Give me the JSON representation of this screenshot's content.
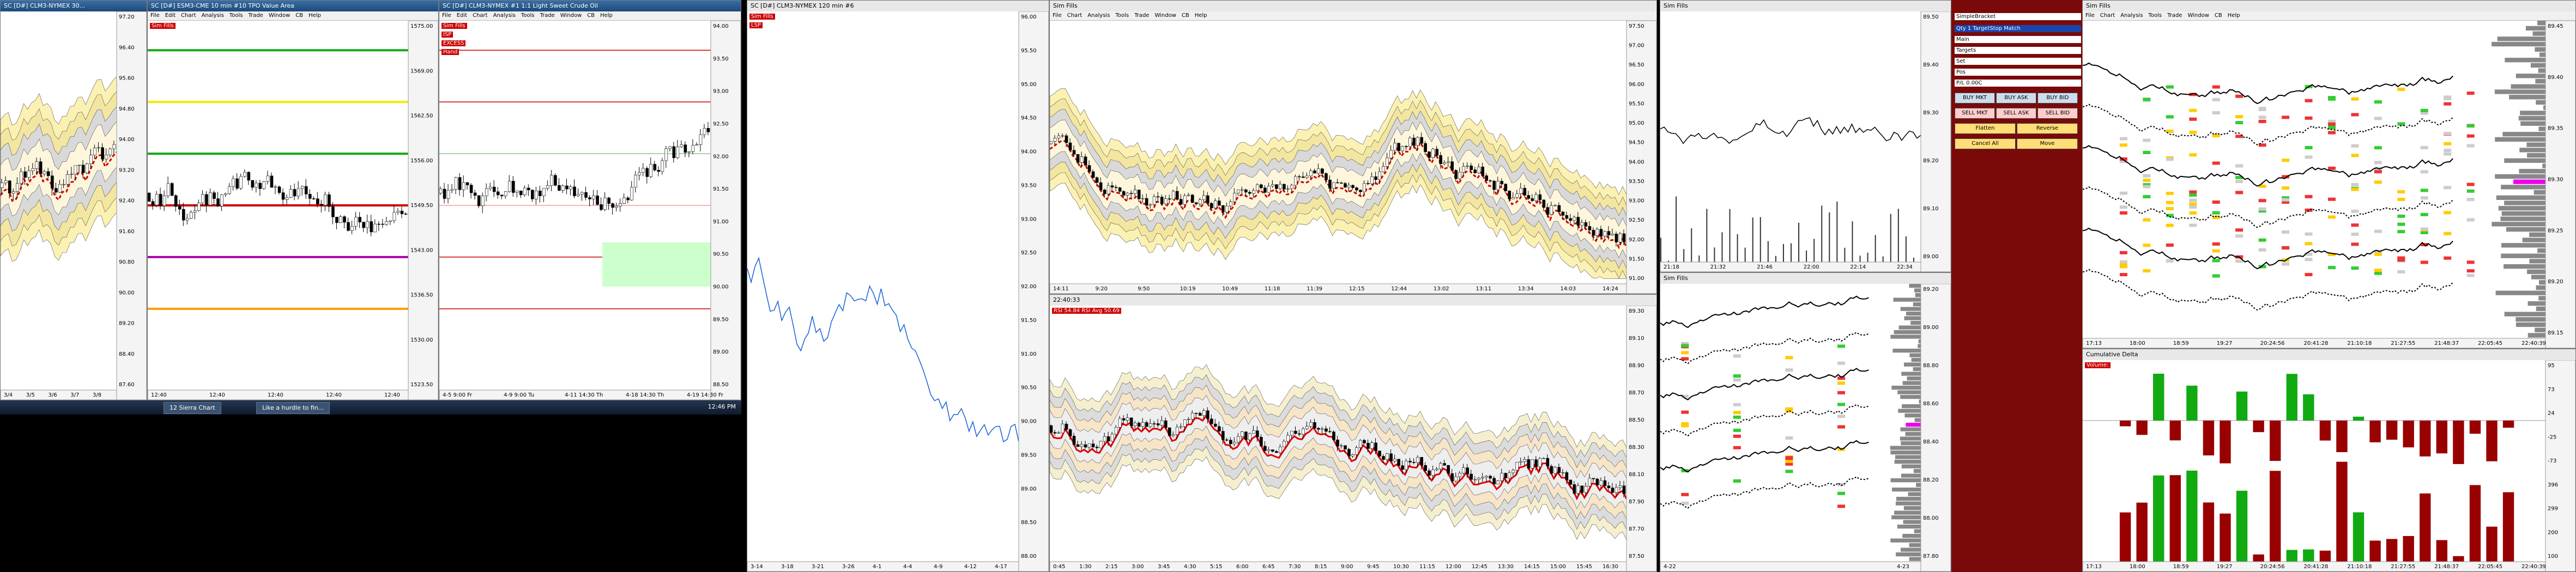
{
  "taskbar": {
    "items": [
      "12 Sierra Chart",
      "Like a hurdle to fin..."
    ],
    "clock": "12:46 PM"
  },
  "windows": [
    {
      "title": "SC [D#] CLM3-NYMEX 30...",
      "price_axis": [
        "97.20",
        "96.40",
        "95.60",
        "94.80",
        "94.00",
        "93.20",
        "92.40",
        "91.60",
        "90.80",
        "90.00",
        "89.20",
        "88.40",
        "87.60"
      ],
      "time_axis": [
        "3/4",
        "3/5",
        "3/6",
        "3/7",
        "3/8"
      ]
    },
    {
      "title": "SC [D#] ESM3-CME 10 min #10 TPO Value Area",
      "menu": [
        "File",
        "Edit",
        "Chart",
        "Analysis",
        "Tools",
        "Trade",
        "Window",
        "CB",
        "Help"
      ],
      "labels": [
        "Sim Fills"
      ],
      "price_axis": [
        "1575.00",
        "1569.00",
        "1562.50",
        "1556.00",
        "1549.50",
        "1543.00",
        "1536.50",
        "1530.00",
        "1523.50"
      ],
      "time_axis": [
        "12:40",
        "12:40",
        "12:40",
        "12:40",
        "12:40"
      ]
    },
    {
      "title": "SC [D#] CLM3-NYMEX #1 1:1 Light Sweet Crude Oil",
      "menu": [
        "File",
        "Edit",
        "Chart",
        "Analysis",
        "Tools",
        "Trade",
        "Window",
        "CB",
        "Help"
      ],
      "labels": [
        "Sim Fills",
        "ISP",
        "EXCESS",
        "Hand"
      ],
      "price_axis": [
        "94.00",
        "93.50",
        "93.00",
        "92.50",
        "92.00",
        "91.50",
        "91.00",
        "90.50",
        "90.00",
        "89.50",
        "89.00",
        "88.50"
      ],
      "time_axis": [
        "4-5 9:00 Fr",
        "4-9 9:00 Tu",
        "4-11 14:30 Th",
        "4-18 14:30 Th",
        "4-19 14:30 Fr"
      ]
    },
    {
      "title": "SC [D#] CLM3-NYMEX 120 min #6",
      "labels": [
        "Sim Fills",
        "LSP"
      ],
      "price_axis": [
        "96.00",
        "95.50",
        "95.00",
        "94.50",
        "94.00",
        "93.50",
        "93.00",
        "92.50",
        "92.00",
        "91.50",
        "91.00",
        "90.50",
        "90.00",
        "89.50",
        "89.00",
        "88.50",
        "88.00"
      ],
      "time_axis": [
        "3-14",
        "3-18",
        "3-21",
        "3-26",
        "4-1",
        "4-4",
        "4-9",
        "4-12",
        "4-17"
      ]
    },
    {
      "title": "Sim Fills",
      "menu": [
        "File",
        "Chart",
        "Analysis",
        "Tools",
        "Trade",
        "Window",
        "CB",
        "Help"
      ],
      "price_axis": [
        "97.50",
        "97.00",
        "96.50",
        "96.00",
        "95.50",
        "95.00",
        "94.50",
        "94.00",
        "93.50",
        "93.00",
        "92.50",
        "92.00",
        "91.50",
        "91.00"
      ],
      "time_axis": [
        "14:11",
        "9:20",
        "9:50",
        "10:19",
        "10:49",
        "11:18",
        "11:39",
        "12:15",
        "12:44",
        "13:02",
        "13:11",
        "13:34",
        "14:03",
        "14:24"
      ]
    },
    {
      "title": "22:40:33",
      "labels": [
        "RSI 54.84 RSI Avg 50.69"
      ],
      "price_axis": [
        "89.30",
        "89.10",
        "88.90",
        "88.70",
        "88.50",
        "88.30",
        "88.10",
        "87.90",
        "87.70",
        "87.50"
      ],
      "time_axis": [
        "0:45",
        "1:30",
        "2:15",
        "3:00",
        "3:45",
        "4:30",
        "5:15",
        "6:00",
        "6:45",
        "7:30",
        "8:15",
        "9:00",
        "9:45",
        "10:30",
        "11:15",
        "12:00",
        "12:45",
        "13:30",
        "14:15",
        "15:00",
        "15:45",
        "16:30"
      ]
    },
    {
      "title": "Sim Fills",
      "price_axis": [
        "89.50",
        "89.40",
        "89.30",
        "89.20",
        "89.10",
        "89.00"
      ],
      "time_axis": [
        "21:18",
        "21:32",
        "21:46",
        "22:00",
        "22:14",
        "22:34"
      ]
    },
    {
      "title": "Sim Fills",
      "price_axis": [
        "89.20",
        "89.00",
        "88.80",
        "88.60",
        "88.40",
        "88.20",
        "88.00",
        "87.80"
      ],
      "time_axis": [
        "4-22",
        "4-23"
      ]
    },
    {
      "title": "Sim Fills",
      "menu": [
        "File",
        "Chart",
        "Analysis",
        "Tools",
        "Trade",
        "Window",
        "CB",
        "Help"
      ],
      "price_axis": [
        "89.45",
        "89.40",
        "89.35",
        "89.30",
        "89.25",
        "89.20",
        "89.15"
      ],
      "time_axis": [
        "17:13",
        "18:00",
        "18:59",
        "19:27",
        "20:24:56",
        "20:41:28",
        "21:10:18",
        "21:27:55",
        "21:48:37",
        "22:05:45",
        "22:40:39"
      ]
    },
    {
      "title": "Cumulative Delta",
      "labels": [
        "Volume:"
      ],
      "price_axis": [
        "95",
        "73",
        "24",
        "-25",
        "-73",
        "396",
        "299",
        "200",
        "100"
      ],
      "time_axis": [
        "17:13",
        "18:00",
        "18:59",
        "19:27",
        "20:24:56",
        "20:41:28",
        "21:10:18",
        "21:27:55",
        "21:48:37",
        "22:05:45",
        "22:40:39"
      ]
    }
  ],
  "dom": {
    "title": "SimpleBracket",
    "fields": [
      "Qty 1 TargetStop Match",
      "Main",
      "Targets",
      "Set",
      "Pos",
      "P/L 0.00C"
    ],
    "buttons": [
      "BUY MKT",
      "BUY ASK",
      "BUY BID",
      "SELL MKT",
      "SELL ASK",
      "SELL BID",
      "Flatten",
      "Reverse",
      "Cancel All",
      "Move"
    ]
  }
}
